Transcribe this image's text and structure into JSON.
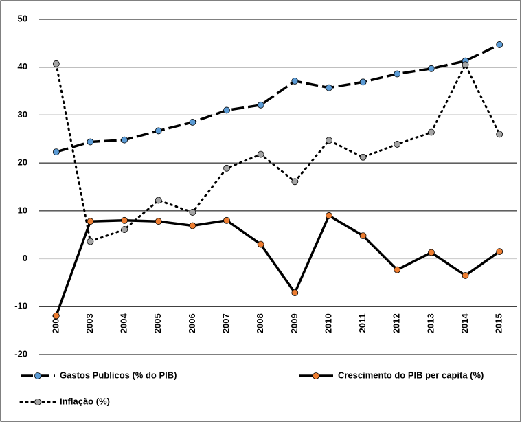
{
  "chart_data": {
    "type": "line",
    "categories": [
      "2002",
      "2003",
      "2004",
      "2005",
      "2006",
      "2007",
      "2008",
      "2009",
      "2010",
      "2011",
      "2012",
      "2013",
      "2014",
      "2015"
    ],
    "series": [
      {
        "name": "Gastos Publicos (% do PIB)",
        "color": "#5b9bd5",
        "line_color": "#000000",
        "line_style": "dashed",
        "values": [
          22.3,
          24.4,
          24.8,
          26.7,
          28.5,
          31.0,
          32.1,
          37.1,
          35.7,
          36.9,
          38.6,
          39.7,
          41.3,
          44.7
        ]
      },
      {
        "name": "Crescimento do PIB per capita (%)",
        "color": "#ed7d31",
        "line_color": "#000000",
        "line_style": "solid",
        "values": [
          -11.9,
          7.8,
          8.0,
          7.8,
          6.9,
          8.0,
          3.0,
          -7.1,
          9.0,
          4.8,
          -2.3,
          1.3,
          -3.5,
          1.5
        ]
      },
      {
        "name": "Inflação (%)",
        "color": "#a5a5a5",
        "line_color": "#000000",
        "line_style": "dotted",
        "values": [
          40.7,
          3.6,
          6.1,
          12.2,
          9.7,
          18.9,
          21.8,
          16.1,
          24.7,
          21.2,
          23.9,
          26.4,
          40.5,
          26.0
        ]
      }
    ],
    "ylim": [
      -20,
      50
    ],
    "yticks": [
      -20,
      -10,
      0,
      10,
      20,
      30,
      40,
      50
    ],
    "grid": true,
    "legend": "bottom"
  }
}
